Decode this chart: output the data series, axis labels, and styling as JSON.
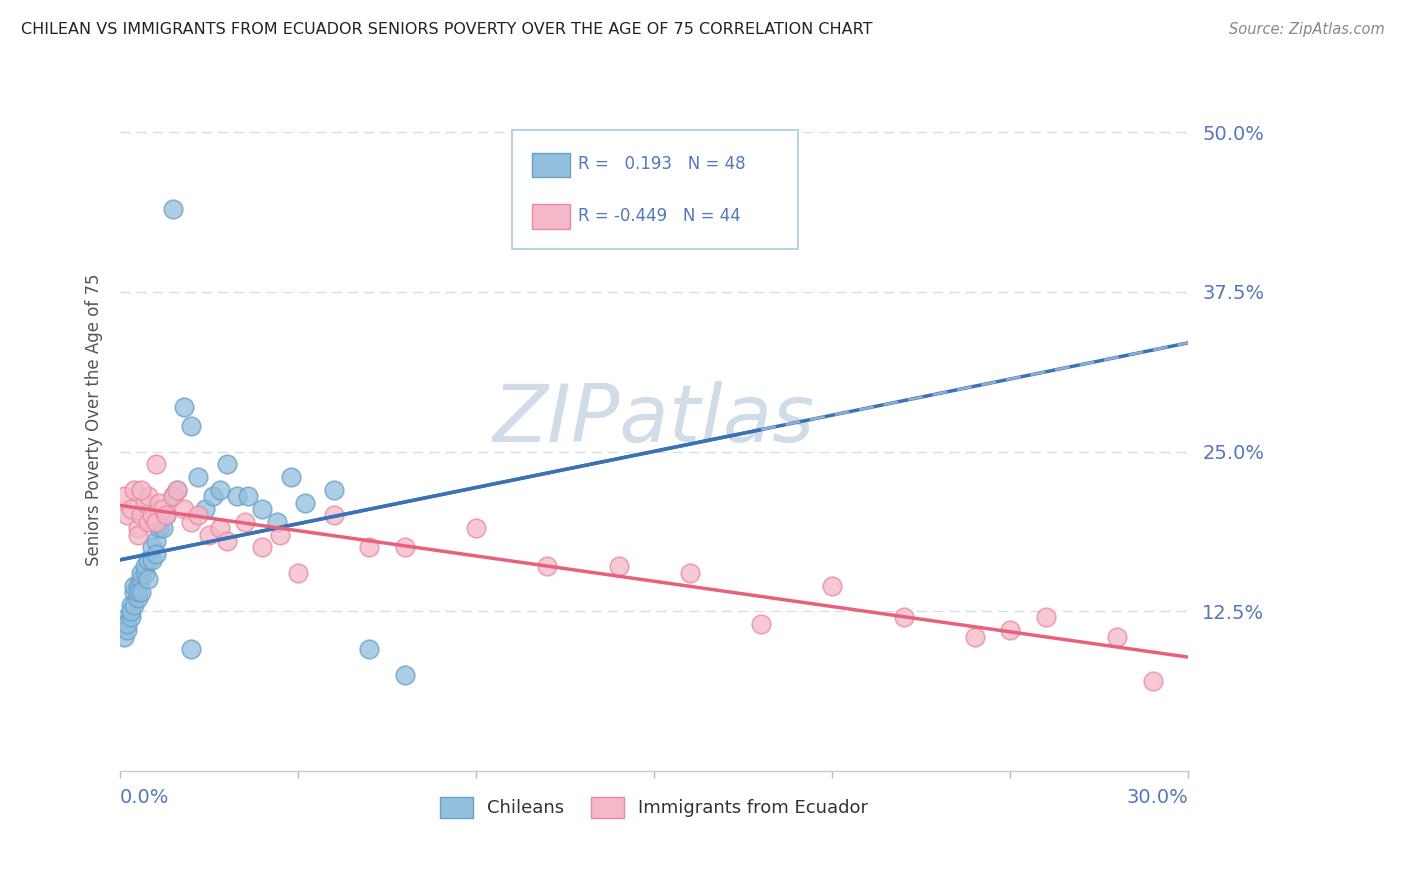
{
  "title": "CHILEAN VS IMMIGRANTS FROM ECUADOR SENIORS POVERTY OVER THE AGE OF 75 CORRELATION CHART",
  "source": "Source: ZipAtlas.com",
  "xmin": 0.0,
  "xmax": 0.3,
  "ymin": 0.0,
  "ymax": 0.55,
  "chilean_R": 0.193,
  "chilean_N": 48,
  "ecuador_R": -0.449,
  "ecuador_N": 44,
  "chilean_color": "#92bfde",
  "chilean_edge_color": "#6a9fc8",
  "ecuador_color": "#f5b8c8",
  "ecuador_edge_color": "#e88aa0",
  "chilean_line_color": "#3a72b8",
  "ecuador_line_color": "#e8607a",
  "dashed_line_color": "#8fafd0",
  "grid_color": "#d4dce8",
  "watermark_color": "#d0dce8",
  "tick_label_color": "#5577bb",
  "ylabel_color": "#555555",
  "title_color": "#222222",
  "source_color": "#888888",
  "legend_edge_color": "#aaccdd",
  "chilean_x": [
    0.001,
    0.001,
    0.002,
    0.002,
    0.002,
    0.003,
    0.003,
    0.003,
    0.004,
    0.004,
    0.004,
    0.005,
    0.005,
    0.005,
    0.006,
    0.006,
    0.006,
    0.007,
    0.007,
    0.008,
    0.008,
    0.009,
    0.009,
    0.01,
    0.01,
    0.011,
    0.012,
    0.013,
    0.015,
    0.016,
    0.018,
    0.02,
    0.022,
    0.024,
    0.026,
    0.028,
    0.03,
    0.033,
    0.036,
    0.04,
    0.044,
    0.048,
    0.052,
    0.06,
    0.07,
    0.08,
    0.015,
    0.02
  ],
  "chilean_y": [
    0.115,
    0.105,
    0.12,
    0.11,
    0.115,
    0.13,
    0.12,
    0.125,
    0.14,
    0.13,
    0.145,
    0.135,
    0.145,
    0.14,
    0.15,
    0.155,
    0.14,
    0.155,
    0.16,
    0.165,
    0.15,
    0.165,
    0.175,
    0.18,
    0.17,
    0.19,
    0.19,
    0.2,
    0.215,
    0.22,
    0.285,
    0.27,
    0.23,
    0.205,
    0.215,
    0.22,
    0.24,
    0.215,
    0.215,
    0.205,
    0.195,
    0.23,
    0.21,
    0.22,
    0.095,
    0.075,
    0.44,
    0.095
  ],
  "ecuador_x": [
    0.001,
    0.002,
    0.003,
    0.004,
    0.005,
    0.005,
    0.006,
    0.007,
    0.008,
    0.008,
    0.009,
    0.01,
    0.011,
    0.012,
    0.013,
    0.015,
    0.016,
    0.018,
    0.02,
    0.022,
    0.025,
    0.028,
    0.03,
    0.035,
    0.04,
    0.045,
    0.05,
    0.06,
    0.07,
    0.08,
    0.1,
    0.12,
    0.14,
    0.16,
    0.18,
    0.2,
    0.22,
    0.24,
    0.26,
    0.28,
    0.29,
    0.006,
    0.01,
    0.25
  ],
  "ecuador_y": [
    0.215,
    0.2,
    0.205,
    0.22,
    0.19,
    0.185,
    0.2,
    0.21,
    0.215,
    0.195,
    0.2,
    0.195,
    0.21,
    0.205,
    0.2,
    0.215,
    0.22,
    0.205,
    0.195,
    0.2,
    0.185,
    0.19,
    0.18,
    0.195,
    0.175,
    0.185,
    0.155,
    0.2,
    0.175,
    0.175,
    0.19,
    0.16,
    0.16,
    0.155,
    0.115,
    0.145,
    0.12,
    0.105,
    0.12,
    0.105,
    0.07,
    0.22,
    0.24,
    0.11
  ]
}
